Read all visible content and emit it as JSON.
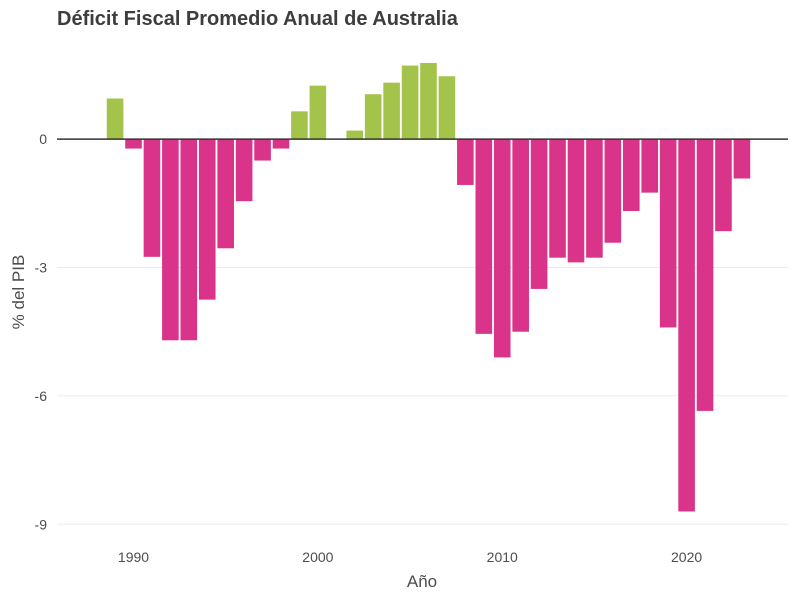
{
  "chart_data": {
    "type": "bar",
    "title": "Déficit Fiscal Promedio Anual de Australia",
    "xlabel": "Año",
    "ylabel": "% del PIB",
    "x": [
      1989,
      1990,
      1991,
      1992,
      1993,
      1994,
      1995,
      1996,
      1997,
      1998,
      1999,
      2000,
      2001,
      2002,
      2003,
      2004,
      2005,
      2006,
      2007,
      2008,
      2009,
      2010,
      2011,
      2012,
      2013,
      2014,
      2015,
      2016,
      2017,
      2018,
      2019,
      2020,
      2021,
      2022,
      2023
    ],
    "values": [
      0.95,
      -0.22,
      -2.75,
      -4.7,
      -4.7,
      -3.75,
      -2.55,
      -1.45,
      -0.5,
      -0.22,
      0.65,
      1.25,
      0.0,
      0.2,
      1.05,
      1.32,
      1.72,
      1.78,
      1.47,
      -1.07,
      -4.55,
      -5.1,
      -4.5,
      -3.5,
      -2.77,
      -2.88,
      -2.77,
      -2.42,
      -1.68,
      -1.25,
      -4.4,
      -8.7,
      -6.35,
      -2.15,
      -0.92
    ],
    "xticks": [
      1990,
      2000,
      2010,
      2020
    ],
    "xtick_labels": [
      "1990",
      "2000",
      "2010",
      "2020"
    ],
    "yticks": [
      0,
      -3,
      -6,
      -9
    ],
    "ytick_labels": [
      "0",
      "-3",
      "-6",
      "-9"
    ],
    "xlim": [
      1985.85,
      2025.5
    ],
    "ylim": [
      -9.25,
      2.2
    ],
    "colors": {
      "positive": "#a4c34a",
      "negative": "#d9338a"
    },
    "grid": true,
    "legend": "none"
  }
}
